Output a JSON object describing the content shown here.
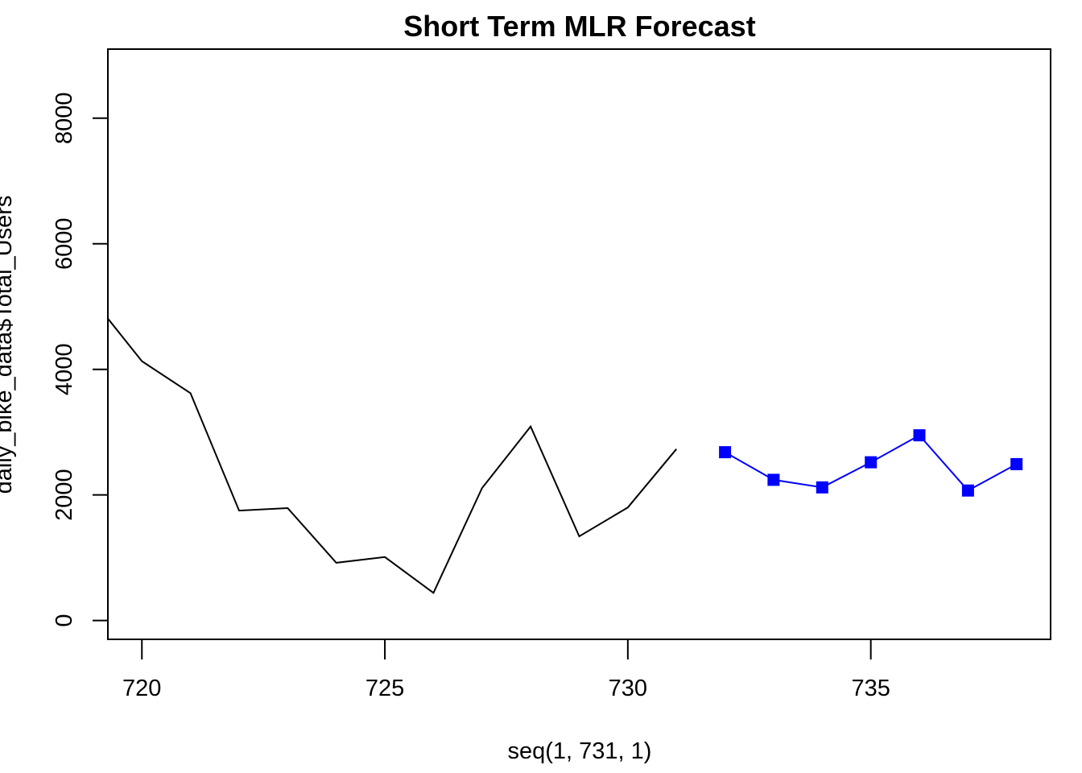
{
  "chart_data": {
    "type": "line",
    "title": "Short Term MLR Forecast",
    "xlabel": "seq(1, 731, 1)",
    "ylabel": "daily_bike_data$Total_Users",
    "xlim": [
      719.3,
      738.7
    ],
    "ylim": [
      -300,
      9100
    ],
    "x_ticks": [
      720,
      725,
      730,
      735
    ],
    "x_tick_labels": [
      "720",
      "725",
      "730",
      "735"
    ],
    "y_ticks": [
      0,
      2000,
      4000,
      6000,
      8000
    ],
    "y_tick_labels": [
      "0",
      "2000",
      "4000",
      "6000",
      "8000"
    ],
    "grid": false,
    "series": [
      {
        "style": "line",
        "color": "#000000",
        "x": [
          719,
          720,
          721,
          722,
          723,
          724,
          725,
          726,
          727,
          728,
          729,
          730,
          731
        ],
        "y": [
          5100,
          4130,
          3620,
          1750,
          1790,
          920,
          1010,
          440,
          2110,
          3090,
          1340,
          1800,
          2730
        ]
      },
      {
        "style": "line+square-markers",
        "color": "#0000ff",
        "x": [
          732,
          733,
          734,
          735,
          736,
          737,
          738
        ],
        "y": [
          2680,
          2240,
          2120,
          2520,
          2950,
          2070,
          2490
        ]
      }
    ]
  }
}
